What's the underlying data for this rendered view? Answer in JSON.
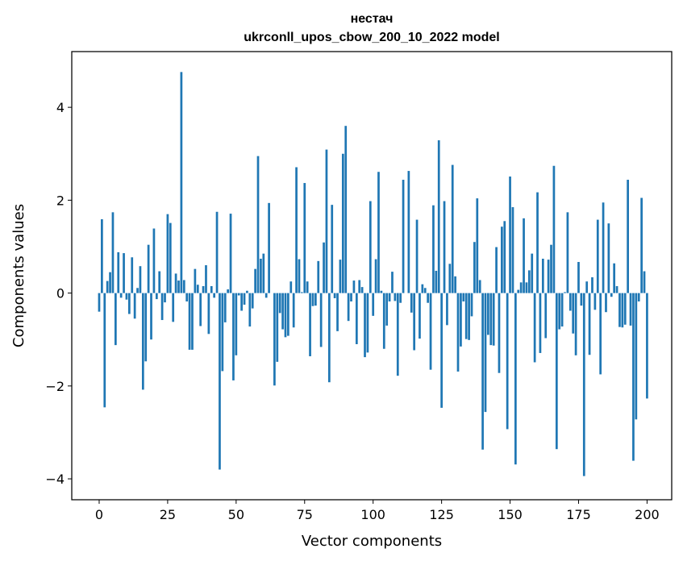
{
  "chart_data": {
    "type": "bar",
    "title": "нестач",
    "subtitle": "ukrconll_upos_cbow_200_10_2022 model",
    "xlabel": "Vector components",
    "ylabel": "Components values",
    "xlim": [
      -10,
      209
    ],
    "ylim": [
      -4.45,
      5.2
    ],
    "xticks": [
      0,
      25,
      50,
      75,
      100,
      125,
      150,
      175,
      200
    ],
    "xtick_labels": [
      "0",
      "25",
      "50",
      "75",
      "100",
      "125",
      "150",
      "175",
      "200"
    ],
    "yticks": [
      -4,
      -2,
      0,
      2,
      4
    ],
    "ytick_labels": [
      "−4",
      "−2",
      "0",
      "2",
      "4"
    ],
    "grid": false,
    "bar_color": "#1f77b4",
    "values": [
      -0.4,
      1.59,
      -2.46,
      0.26,
      0.45,
      1.74,
      -1.12,
      0.88,
      -0.1,
      0.86,
      -0.14,
      -0.45,
      0.77,
      -0.55,
      0.11,
      0.58,
      -2.08,
      -1.47,
      1.04,
      -1.0,
      1.39,
      -0.13,
      0.47,
      -0.58,
      -0.2,
      1.7,
      1.51,
      -0.62,
      0.42,
      0.27,
      4.76,
      0.28,
      -0.18,
      -1.22,
      -1.22,
      0.52,
      0.18,
      -0.71,
      0.15,
      0.6,
      -0.88,
      0.15,
      -0.1,
      1.75,
      -3.8,
      -1.68,
      -0.63,
      0.08,
      1.71,
      -1.88,
      -1.34,
      -0.05,
      -0.38,
      -0.25,
      0.05,
      -0.72,
      -0.33,
      0.52,
      2.95,
      0.74,
      0.85,
      -0.1,
      1.94,
      0.0,
      -1.99,
      -1.48,
      -0.43,
      -0.78,
      -0.95,
      -0.92,
      0.25,
      -0.74,
      2.71,
      0.73,
      0.02,
      2.37,
      0.25,
      -1.36,
      -0.28,
      -0.27,
      0.69,
      -1.16,
      1.09,
      3.09,
      -1.92,
      1.9,
      -0.11,
      -0.82,
      0.72,
      3.0,
      3.6,
      -0.6,
      -0.18,
      0.27,
      -1.1,
      0.28,
      0.13,
      -1.38,
      -1.28,
      1.98,
      -0.49,
      0.73,
      2.61,
      0.05,
      -1.2,
      -0.7,
      -0.18,
      0.46,
      -0.17,
      -1.78,
      -0.21,
      2.44,
      0.0,
      2.63,
      -0.42,
      -1.23,
      1.58,
      -0.98,
      0.19,
      0.11,
      -0.21,
      -1.65,
      1.89,
      0.48,
      3.29,
      -2.47,
      1.98,
      -0.69,
      0.63,
      2.76,
      0.36,
      -1.69,
      -1.15,
      -0.18,
      -0.99,
      -1.01,
      -0.5,
      1.1,
      2.04,
      0.28,
      -3.37,
      -2.56,
      -0.9,
      -1.12,
      -1.13,
      0.99,
      -1.72,
      1.43,
      1.55,
      -2.93,
      2.51,
      1.85,
      -3.69,
      0.07,
      0.23,
      1.61,
      0.23,
      0.49,
      0.85,
      -1.49,
      2.17,
      -1.29,
      0.74,
      -0.97,
      0.72,
      1.04,
      2.74,
      -3.36,
      -0.78,
      -0.72,
      0.02,
      1.74,
      -0.38,
      -0.87,
      -1.34,
      0.67,
      -0.27,
      -3.94,
      0.25,
      -1.33,
      0.34,
      -0.36,
      1.58,
      -1.75,
      1.95,
      -0.41,
      1.5,
      -0.08,
      0.64,
      0.15,
      -0.73,
      -0.74,
      -0.68,
      2.44,
      -0.7,
      -3.61,
      -2.72,
      -0.18,
      2.05,
      0.47,
      -2.27
    ]
  }
}
